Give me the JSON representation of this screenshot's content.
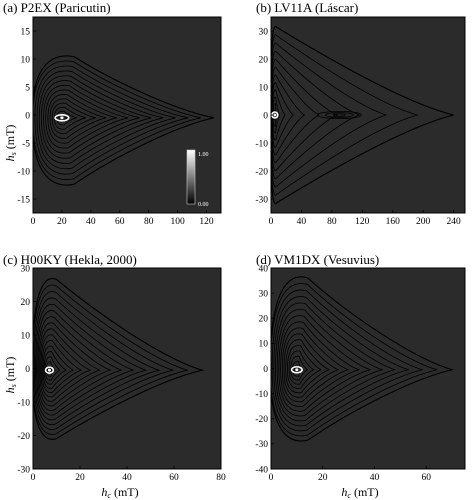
{
  "figure": {
    "xlabel_main": "h",
    "xlabel_sub": "c",
    "xlabel_unit": " (mT)",
    "ylabel_main": "h",
    "ylabel_sub": "s",
    "ylabel_unit": " (mT)"
  },
  "colorbar": {
    "max_label": "1.00",
    "min_label": "0.00"
  },
  "colors": {
    "background": "#2b2b2b",
    "contour": "#000000",
    "peak": "#ffffff"
  },
  "chart_data": [
    {
      "type": "heatmap",
      "id": "a",
      "title": "(a)  P2EX (Paricutin)",
      "xlim": [
        0,
        130
      ],
      "ylim": [
        -17.5,
        17.5
      ],
      "xticks": [
        0,
        20,
        40,
        60,
        80,
        100,
        120
      ],
      "yticks": [
        -15,
        -10,
        -5,
        0,
        5,
        10,
        15
      ],
      "peak": {
        "hc": 20,
        "hs": -0.5
      },
      "extent": {
        "hc_max": 125,
        "hs_max": 11,
        "hs_min": -13
      },
      "colorbar_shown": true
    },
    {
      "type": "heatmap",
      "id": "b",
      "title": "(b)  LV11A (Láscar)",
      "xlim": [
        0,
        255
      ],
      "ylim": [
        -35,
        35
      ],
      "xticks": [
        0,
        40,
        80,
        120,
        160,
        200,
        240
      ],
      "yticks": [
        -30,
        -20,
        -10,
        0,
        10,
        20,
        30
      ],
      "peak": {
        "hc": 5,
        "hs": 0
      },
      "secondary_peak": {
        "hc": 90,
        "hs": 0
      },
      "extent": {
        "hc_max": 240,
        "hs_max": 33,
        "hs_min": -33
      },
      "colorbar_shown": false
    },
    {
      "type": "heatmap",
      "id": "c",
      "title": "(c)  H00KY (Hekla, 2000)",
      "xlim": [
        0,
        80
      ],
      "ylim": [
        -30,
        30
      ],
      "xticks": [
        0,
        20,
        40,
        60,
        80
      ],
      "yticks": [
        -30,
        -20,
        -10,
        0,
        10,
        20,
        30
      ],
      "peak": {
        "hc": 7,
        "hs": -0.5
      },
      "extent": {
        "hc_max": 72,
        "hs_max": 28,
        "hs_min": -22
      },
      "colorbar_shown": false
    },
    {
      "type": "heatmap",
      "id": "d",
      "title": "(d)  VM1DX (Vesuvius)",
      "xlim": [
        0,
        75
      ],
      "ylim": [
        -40,
        40
      ],
      "xticks": [
        0,
        20,
        40,
        60
      ],
      "yticks": [
        -40,
        -30,
        -20,
        -10,
        0,
        10,
        20,
        30,
        40
      ],
      "peak": {
        "hc": 10,
        "hs": -0.5
      },
      "extent": {
        "hc_max": 70,
        "hs_max": 38,
        "hs_min": -30
      },
      "colorbar_shown": false
    }
  ]
}
